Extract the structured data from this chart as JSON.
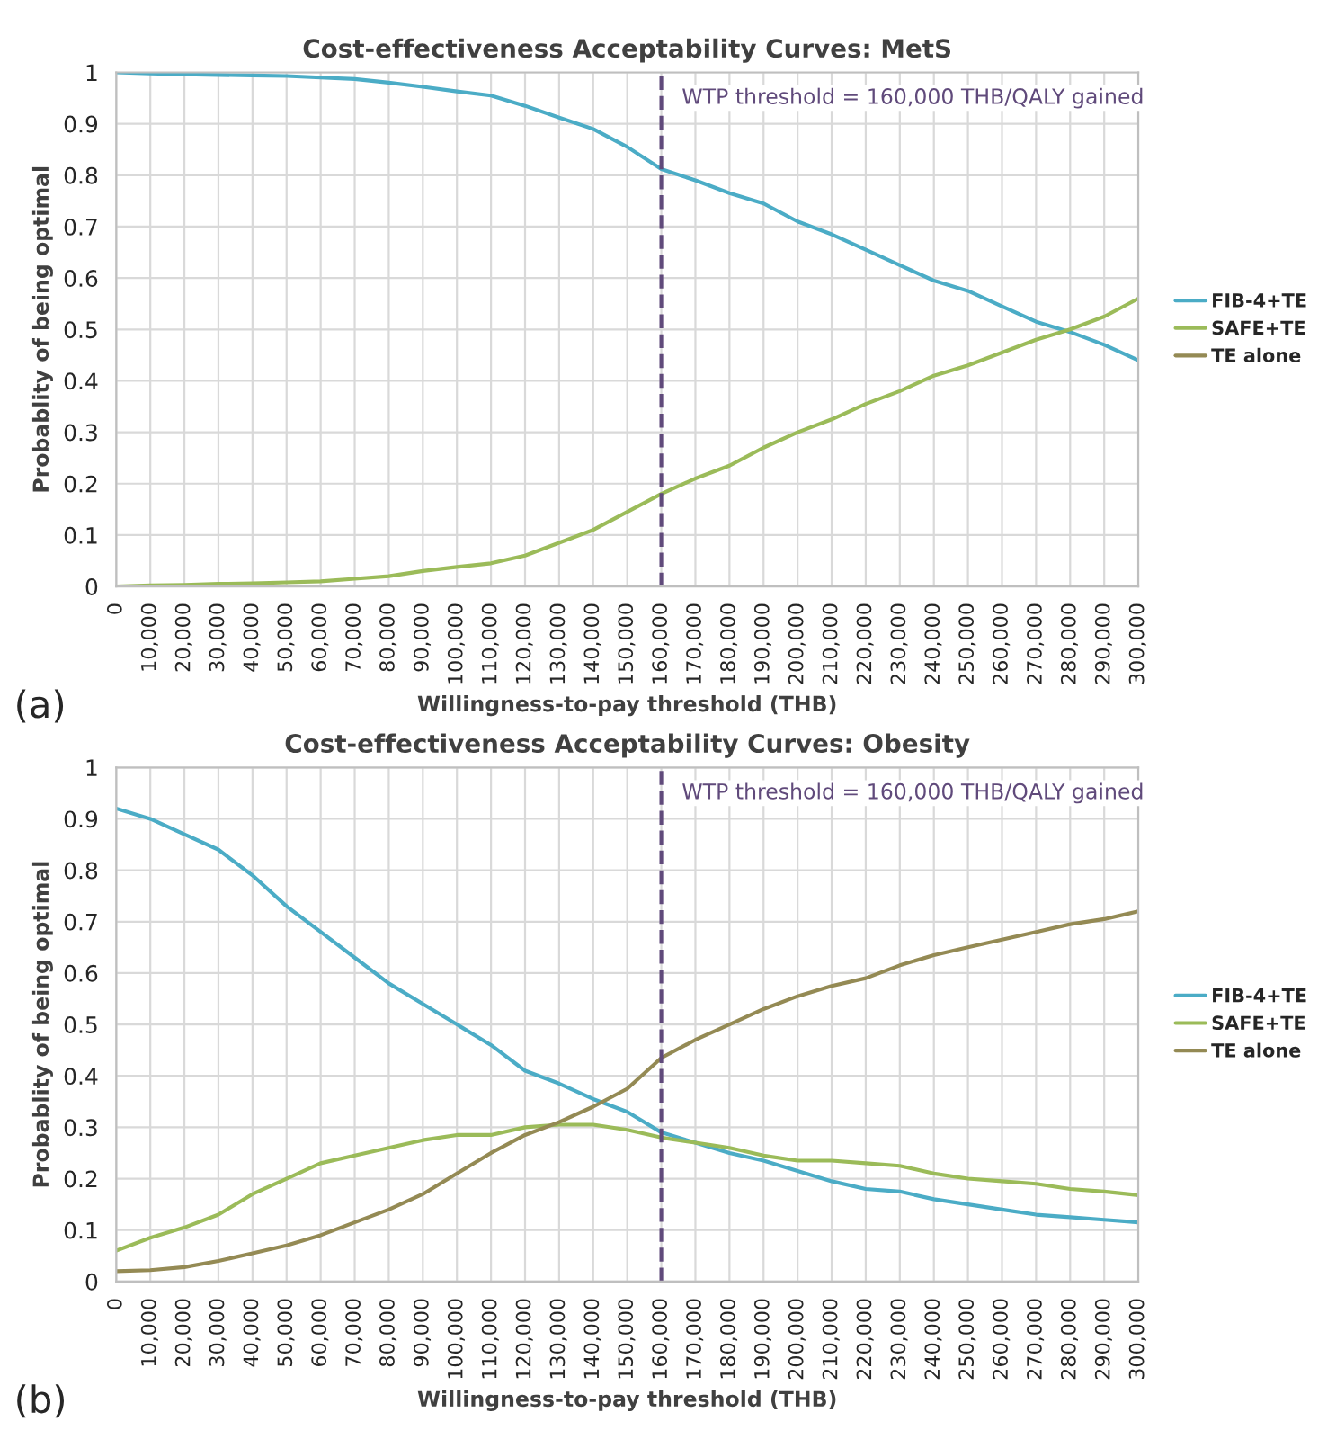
{
  "chart_data": [
    {
      "type": "line",
      "title": "Cost-effectiveness Acceptability Curves: MetS",
      "xlabel": "Willingness-to-pay threshold (THB)",
      "ylabel": "Probablity of being optimal",
      "x": [
        0,
        10000,
        20000,
        30000,
        40000,
        50000,
        60000,
        70000,
        80000,
        90000,
        100000,
        110000,
        120000,
        130000,
        140000,
        150000,
        160000,
        170000,
        180000,
        190000,
        200000,
        210000,
        220000,
        230000,
        240000,
        250000,
        260000,
        270000,
        280000,
        290000,
        300000
      ],
      "series": [
        {
          "name": "FIB-4+TE",
          "color": "#4bacc6",
          "values": [
            1.0,
            0.998,
            0.996,
            0.995,
            0.994,
            0.993,
            0.99,
            0.987,
            0.98,
            0.972,
            0.963,
            0.955,
            0.935,
            0.912,
            0.89,
            0.855,
            0.812,
            0.79,
            0.765,
            0.745,
            0.71,
            0.685,
            0.655,
            0.625,
            0.595,
            0.575,
            0.545,
            0.515,
            0.495,
            0.47,
            0.44
          ]
        },
        {
          "name": "SAFE+TE",
          "color": "#9bbb59",
          "values": [
            0,
            0.002,
            0.003,
            0.005,
            0.006,
            0.008,
            0.01,
            0.015,
            0.02,
            0.03,
            0.038,
            0.045,
            0.06,
            0.085,
            0.11,
            0.145,
            0.18,
            0.21,
            0.235,
            0.27,
            0.3,
            0.325,
            0.355,
            0.38,
            0.41,
            0.43,
            0.455,
            0.48,
            0.5,
            0.525,
            0.56
          ]
        },
        {
          "name": "TE alone",
          "color": "#948a54",
          "values": [
            0,
            0,
            0,
            0,
            0,
            0,
            0,
            0,
            0,
            0,
            0,
            0,
            0,
            0,
            0,
            0,
            0,
            0,
            0,
            0,
            0,
            0,
            0,
            0,
            0,
            0,
            0,
            0,
            0,
            0,
            0
          ]
        }
      ],
      "xlim": [
        0,
        300000
      ],
      "xticks": [
        0,
        {
          "value": 10000,
          "label": "10,000"
        },
        {
          "value": 20000,
          "label": "20,000"
        },
        {
          "value": 30000,
          "label": "30,000"
        },
        {
          "value": 40000,
          "label": "40,000"
        },
        {
          "value": 50000,
          "label": "50,000"
        },
        {
          "value": 60000,
          "label": "60,000"
        },
        {
          "value": 70000,
          "label": "70,000"
        },
        {
          "value": 80000,
          "label": "80,000"
        },
        {
          "value": 90000,
          "label": "90,000"
        },
        {
          "value": 100000,
          "label": "100,000"
        },
        {
          "value": 110000,
          "label": "110,000"
        },
        {
          "value": 120000,
          "label": "120,000"
        },
        {
          "value": 130000,
          "label": "130,000"
        },
        {
          "value": 140000,
          "label": "140,000"
        },
        {
          "value": 150000,
          "label": "150,000"
        },
        {
          "value": 160000,
          "label": "160,000"
        },
        {
          "value": 170000,
          "label": "170,000"
        },
        {
          "value": 180000,
          "label": "180,000"
        },
        {
          "value": 190000,
          "label": "190,000"
        },
        {
          "value": 200000,
          "label": "200,000"
        },
        {
          "value": 210000,
          "label": "210,000"
        },
        {
          "value": 220000,
          "label": "220,000"
        },
        {
          "value": 230000,
          "label": "230,000"
        },
        {
          "value": 240000,
          "label": "240,000"
        },
        {
          "value": 250000,
          "label": "250,000"
        },
        {
          "value": 260000,
          "label": "260,000"
        },
        {
          "value": 270000,
          "label": "270,000"
        },
        {
          "value": 280000,
          "label": "280,000"
        },
        {
          "value": 290000,
          "label": "290,000"
        },
        {
          "value": 300000,
          "label": "300,000"
        }
      ],
      "ylim": [
        0,
        1
      ],
      "yticks": [
        0,
        0.1,
        0.2,
        0.3,
        0.4,
        0.5,
        0.6,
        0.7,
        0.8,
        0.9,
        1
      ],
      "ref_lines": [
        {
          "axis": "x",
          "value": 160000,
          "label": "WTP threshold = 160,000 THB/QALY gained",
          "color": "#604a7b",
          "line_style": "dashed"
        }
      ],
      "annotations": [
        "(a)"
      ],
      "grid": true,
      "legend": "right",
      "line_style": "solid"
    },
    {
      "type": "line",
      "title": "Cost-effectiveness Acceptability Curves: Obesity",
      "xlabel": "Willingness-to-pay threshold (THB)",
      "ylabel": "Probablity of being optimal",
      "x": [
        0,
        10000,
        20000,
        30000,
        40000,
        50000,
        60000,
        70000,
        80000,
        90000,
        100000,
        110000,
        120000,
        130000,
        140000,
        150000,
        160000,
        170000,
        180000,
        190000,
        200000,
        210000,
        220000,
        230000,
        240000,
        250000,
        260000,
        270000,
        280000,
        290000,
        300000
      ],
      "series": [
        {
          "name": "FIB-4+TE",
          "color": "#4bacc6",
          "values": [
            0.92,
            0.9,
            0.87,
            0.84,
            0.79,
            0.73,
            0.68,
            0.63,
            0.58,
            0.54,
            0.5,
            0.46,
            0.41,
            0.385,
            0.355,
            0.33,
            0.29,
            0.27,
            0.25,
            0.235,
            0.215,
            0.195,
            0.18,
            0.175,
            0.16,
            0.15,
            0.14,
            0.13,
            0.125,
            0.12,
            0.115
          ]
        },
        {
          "name": "SAFE+TE",
          "color": "#9bbb59",
          "values": [
            0.06,
            0.085,
            0.105,
            0.13,
            0.17,
            0.2,
            0.23,
            0.245,
            0.26,
            0.275,
            0.285,
            0.285,
            0.3,
            0.305,
            0.305,
            0.295,
            0.28,
            0.27,
            0.26,
            0.245,
            0.235,
            0.235,
            0.23,
            0.225,
            0.21,
            0.2,
            0.195,
            0.19,
            0.18,
            0.175,
            0.168
          ]
        },
        {
          "name": "TE alone",
          "color": "#948a54",
          "values": [
            0.02,
            0.022,
            0.028,
            0.04,
            0.055,
            0.07,
            0.09,
            0.115,
            0.14,
            0.17,
            0.21,
            0.25,
            0.285,
            0.31,
            0.34,
            0.375,
            0.435,
            0.47,
            0.5,
            0.53,
            0.555,
            0.575,
            0.59,
            0.615,
            0.635,
            0.65,
            0.665,
            0.68,
            0.695,
            0.705,
            0.72
          ]
        }
      ],
      "xlim": [
        0,
        300000
      ],
      "xticks": [
        0,
        {
          "value": 10000,
          "label": "10,000"
        },
        {
          "value": 20000,
          "label": "20,000"
        },
        {
          "value": 30000,
          "label": "30,000"
        },
        {
          "value": 40000,
          "label": "40,000"
        },
        {
          "value": 50000,
          "label": "50,000"
        },
        {
          "value": 60000,
          "label": "60,000"
        },
        {
          "value": 70000,
          "label": "70,000"
        },
        {
          "value": 80000,
          "label": "80,000"
        },
        {
          "value": 90000,
          "label": "90,000"
        },
        {
          "value": 100000,
          "label": "100,000"
        },
        {
          "value": 110000,
          "label": "110,000"
        },
        {
          "value": 120000,
          "label": "120,000"
        },
        {
          "value": 130000,
          "label": "130,000"
        },
        {
          "value": 140000,
          "label": "140,000"
        },
        {
          "value": 150000,
          "label": "150,000"
        },
        {
          "value": 160000,
          "label": "160,000"
        },
        {
          "value": 170000,
          "label": "170,000"
        },
        {
          "value": 180000,
          "label": "180,000"
        },
        {
          "value": 190000,
          "label": "190,000"
        },
        {
          "value": 200000,
          "label": "200,000"
        },
        {
          "value": 210000,
          "label": "210,000"
        },
        {
          "value": 220000,
          "label": "220,000"
        },
        {
          "value": 230000,
          "label": "230,000"
        },
        {
          "value": 240000,
          "label": "240,000"
        },
        {
          "value": 250000,
          "label": "250,000"
        },
        {
          "value": 260000,
          "label": "260,000"
        },
        {
          "value": 270000,
          "label": "270,000"
        },
        {
          "value": 280000,
          "label": "280,000"
        },
        {
          "value": 290000,
          "label": "290,000"
        },
        {
          "value": 300000,
          "label": "300,000"
        }
      ],
      "ylim": [
        0,
        1
      ],
      "yticks": [
        0,
        0.1,
        0.2,
        0.3,
        0.4,
        0.5,
        0.6,
        0.7,
        0.8,
        0.9,
        1
      ],
      "ref_lines": [
        {
          "axis": "x",
          "value": 160000,
          "label": "WTP threshold = 160,000 THB/QALY gained",
          "color": "#604a7b",
          "line_style": "dashed"
        }
      ],
      "annotations": [
        "(b)"
      ],
      "grid": true,
      "legend": "right",
      "line_style": "solid"
    }
  ]
}
